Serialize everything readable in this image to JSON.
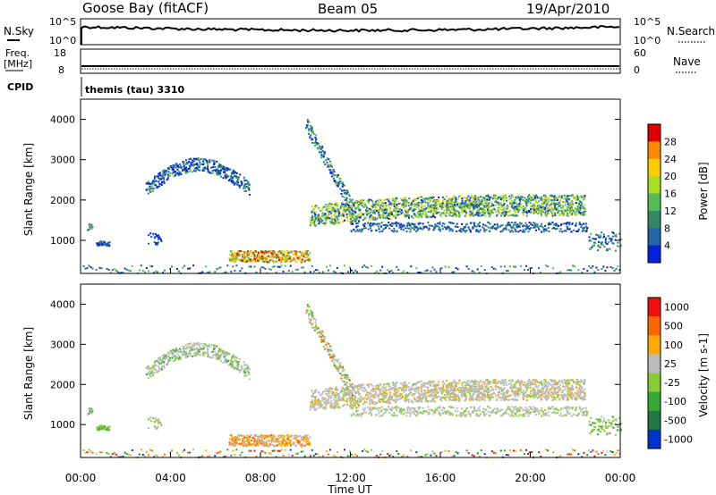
{
  "header": {
    "station": "Goose Bay (fitACF)",
    "beam": "Beam 05",
    "date": "19/Apr/2010"
  },
  "status_panels": {
    "nsky_label": "N.Sky",
    "nsky_ticks": [
      "10^5",
      "10^0"
    ],
    "nsearch_label": "N.Search",
    "nsearch_ticks": [
      "10^5",
      "10^0"
    ],
    "freq_label": "Freq.",
    "freq_unit": "[MHz]",
    "freq_ticks": [
      "18",
      "8"
    ],
    "nave_label": "Nave",
    "nave_ticks": [
      "60",
      "0"
    ],
    "cpid_label": "CPID",
    "cpid_value": "themis (tau) 3310"
  },
  "chart_data": [
    {
      "type": "heatmap",
      "name": "power",
      "ylabel": "Slant Range [km]",
      "xlabel": "",
      "yticks": [
        "1000",
        "2000",
        "3000",
        "4000"
      ],
      "ylim": [
        180,
        4500
      ],
      "xlim_hours": [
        0,
        24
      ],
      "colorbar": {
        "label": "Power [dB]",
        "ticks": [
          "4",
          "8",
          "12",
          "16",
          "20",
          "24",
          "28"
        ],
        "colors": [
          "#0022dd",
          "#2266aa",
          "#338866",
          "#55bb55",
          "#aadd22",
          "#ffcc00",
          "#ff8800",
          "#dd0000"
        ]
      },
      "features": [
        {
          "t_start": 2.8,
          "t_end": 7.5,
          "range_center": 2600,
          "shape": "arc",
          "dominant": "blue"
        },
        {
          "t_start": 10.0,
          "t_end": 22.5,
          "range_center": 1700,
          "shape": "band",
          "dominant": "green-yellow"
        },
        {
          "t_start": 7.0,
          "t_end": 10.0,
          "range_center": 600,
          "shape": "blob",
          "dominant": "orange-red"
        }
      ]
    },
    {
      "type": "heatmap",
      "name": "velocity",
      "ylabel": "Slant Range [km]",
      "xlabel": "Time UT",
      "yticks": [
        "1000",
        "2000",
        "3000",
        "4000"
      ],
      "ylim": [
        180,
        4500
      ],
      "xticks": [
        "00:00",
        "04:00",
        "08:00",
        "12:00",
        "16:00",
        "20:00",
        "00:00"
      ],
      "colorbar": {
        "label": "Velocity [m s-1]",
        "ticks": [
          "1000",
          "500",
          "100",
          "25",
          "-25",
          "-100",
          "-500",
          "-1000"
        ],
        "colors": [
          "#0033cc",
          "#227744",
          "#33aa33",
          "#88cc33",
          "#bbbbbb",
          "#ffaa00",
          "#ff6600",
          "#ee1111"
        ]
      }
    }
  ]
}
